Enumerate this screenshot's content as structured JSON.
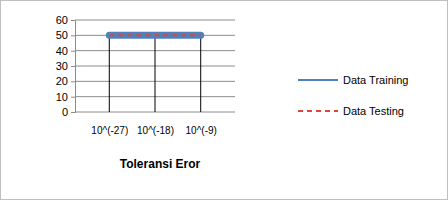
{
  "chart_data": {
    "type": "line",
    "x_label": "Toleransi Eror",
    "categories": [
      "10^(-27)",
      "10^(-18)",
      "10^(-9)"
    ],
    "series": [
      {
        "name": "Data Training",
        "color": "#4f81bd",
        "line_style": "solid",
        "values": [
          50,
          50,
          50
        ]
      },
      {
        "name": "Data Testing",
        "color": "#e0443c",
        "line_style": "dashed",
        "values": [
          50,
          50,
          50
        ]
      }
    ],
    "ylim": [
      0,
      60
    ],
    "yticks": [
      0,
      10,
      20,
      30,
      40,
      50,
      60
    ],
    "grid": true,
    "legend": "right"
  }
}
